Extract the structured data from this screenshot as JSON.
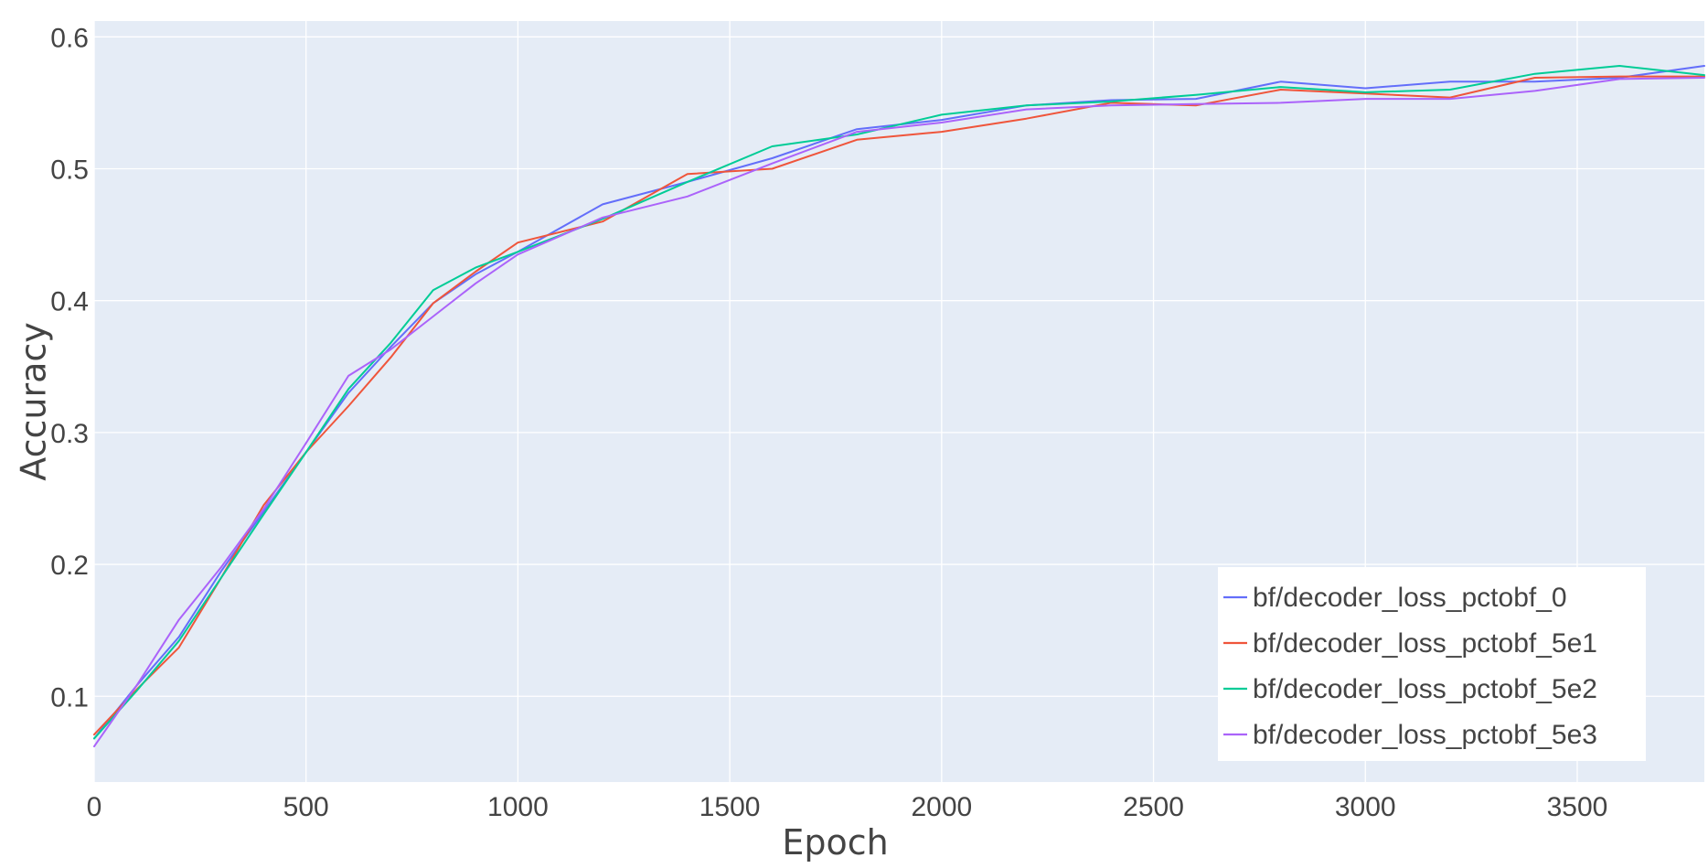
{
  "chart_data": {
    "type": "line",
    "title": "",
    "xlabel": "Epoch",
    "ylabel": "Accuracy",
    "xlim": [
      0,
      3800
    ],
    "ylim": [
      0.035,
      0.612
    ],
    "x_ticks": [
      0,
      500,
      1000,
      1500,
      2000,
      2500,
      3000,
      3500
    ],
    "y_ticks": [
      0.1,
      0.2,
      0.3,
      0.4,
      0.5,
      0.6
    ],
    "x_tick_labels": [
      "0",
      "500",
      "1000",
      "1500",
      "2000",
      "2500",
      "3000",
      "3500"
    ],
    "y_tick_labels": [
      "0.1",
      "0.2",
      "0.3",
      "0.4",
      "0.5",
      "0.6"
    ],
    "grid": true,
    "legend_position": "bottom-right",
    "colors": {
      "plot_bg": "#E5ECF6",
      "grid": "#ffffff"
    },
    "x": [
      0,
      100,
      200,
      300,
      400,
      500,
      600,
      700,
      800,
      900,
      1000,
      1200,
      1400,
      1600,
      1800,
      2000,
      2200,
      2400,
      2600,
      2800,
      3000,
      3200,
      3400,
      3600,
      3800
    ],
    "series": [
      {
        "name": "bf/decoder_loss_pctobf_0",
        "color": "#636EFA",
        "values": [
          0.068,
          0.108,
          0.145,
          0.195,
          0.24,
          0.285,
          0.33,
          0.365,
          0.398,
          0.42,
          0.437,
          0.473,
          0.49,
          0.508,
          0.53,
          0.537,
          0.548,
          0.552,
          0.553,
          0.566,
          0.561,
          0.566,
          0.566,
          0.569,
          0.578
        ]
      },
      {
        "name": "bf/decoder_loss_pctobf_5e1",
        "color": "#EF553B",
        "values": [
          0.071,
          0.105,
          0.137,
          0.19,
          0.245,
          0.285,
          0.32,
          0.357,
          0.398,
          0.422,
          0.444,
          0.46,
          0.496,
          0.5,
          0.522,
          0.528,
          0.538,
          0.55,
          0.548,
          0.56,
          0.557,
          0.554,
          0.569,
          0.57,
          0.57
        ]
      },
      {
        "name": "bf/decoder_loss_pctobf_5e2",
        "color": "#00CC96",
        "values": [
          0.068,
          0.104,
          0.142,
          0.19,
          0.238,
          0.285,
          0.333,
          0.368,
          0.408,
          0.425,
          0.437,
          0.462,
          0.49,
          0.517,
          0.526,
          0.541,
          0.548,
          0.551,
          0.556,
          0.562,
          0.558,
          0.56,
          0.572,
          0.578,
          0.571
        ]
      },
      {
        "name": "bf/decoder_loss_pctobf_5e3",
        "color": "#AB63FA",
        "values": [
          0.062,
          0.108,
          0.158,
          0.198,
          0.242,
          0.292,
          0.343,
          0.363,
          0.388,
          0.413,
          0.435,
          0.463,
          0.479,
          0.504,
          0.528,
          0.535,
          0.545,
          0.548,
          0.549,
          0.55,
          0.553,
          0.553,
          0.559,
          0.568,
          0.569
        ]
      }
    ]
  }
}
